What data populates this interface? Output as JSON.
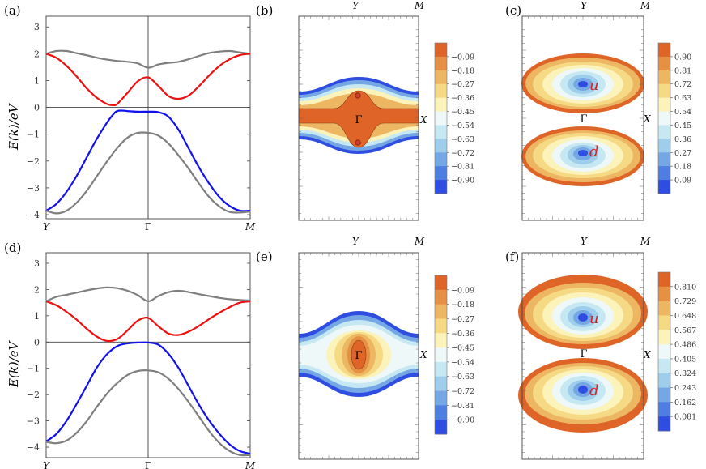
{
  "chart_data": [
    {
      "panel": "(a)",
      "type": "line",
      "ylabel": "E(k)/eV",
      "xticks": [
        "Y",
        "Γ",
        "M"
      ],
      "yticks": [
        -4,
        -3,
        -2,
        -1,
        0,
        1,
        2,
        3
      ],
      "ylim": [
        -4.15,
        3.4
      ],
      "xlim": [
        0,
        1
      ],
      "grid_lines": {
        "x": [
          0.5
        ],
        "y": [
          0
        ]
      },
      "series": [
        {
          "name": "upper-gray",
          "color": "#7f7f7f",
          "x": [
            0,
            0.05,
            0.1,
            0.15,
            0.2,
            0.25,
            0.3,
            0.35,
            0.4,
            0.45,
            0.5,
            0.55,
            0.6,
            0.65,
            0.7,
            0.75,
            0.8,
            0.85,
            0.9,
            0.95,
            1
          ],
          "y": [
            2.0,
            2.1,
            2.1,
            2.02,
            1.94,
            1.85,
            1.78,
            1.73,
            1.7,
            1.64,
            1.48,
            1.6,
            1.66,
            1.7,
            1.8,
            1.92,
            2.03,
            2.08,
            2.1,
            2.05,
            2.0
          ]
        },
        {
          "name": "red",
          "color": "#ee1111",
          "x": [
            0,
            0.05,
            0.1,
            0.15,
            0.2,
            0.25,
            0.3,
            0.33,
            0.35,
            0.4,
            0.45,
            0.5,
            0.55,
            0.6,
            0.65,
            0.7,
            0.75,
            0.8,
            0.85,
            0.9,
            0.95,
            1
          ],
          "y": [
            2.0,
            1.85,
            1.55,
            1.15,
            0.7,
            0.35,
            0.12,
            0.08,
            0.14,
            0.55,
            0.98,
            1.12,
            0.8,
            0.42,
            0.32,
            0.45,
            0.8,
            1.2,
            1.55,
            1.8,
            1.95,
            2.0
          ]
        },
        {
          "name": "blue",
          "color": "#1111ee",
          "x": [
            0,
            0.05,
            0.1,
            0.15,
            0.2,
            0.25,
            0.3,
            0.33,
            0.35,
            0.38,
            0.4,
            0.45,
            0.5,
            0.55,
            0.6,
            0.65,
            0.7,
            0.75,
            0.8,
            0.85,
            0.9,
            0.95,
            1
          ],
          "y": [
            -3.85,
            -3.6,
            -3.15,
            -2.55,
            -1.85,
            -1.15,
            -0.55,
            -0.25,
            -0.13,
            -0.12,
            -0.14,
            -0.16,
            -0.16,
            -0.18,
            -0.35,
            -0.85,
            -1.55,
            -2.25,
            -2.85,
            -3.35,
            -3.68,
            -3.85,
            -3.85
          ]
        },
        {
          "name": "lower-gray",
          "color": "#7f7f7f",
          "x": [
            0,
            0.05,
            0.1,
            0.15,
            0.2,
            0.25,
            0.3,
            0.35,
            0.4,
            0.45,
            0.5,
            0.55,
            0.6,
            0.65,
            0.7,
            0.75,
            0.8,
            0.85,
            0.9,
            0.95,
            1
          ],
          "y": [
            -3.85,
            -3.95,
            -3.85,
            -3.55,
            -3.1,
            -2.55,
            -2.0,
            -1.5,
            -1.12,
            -0.95,
            -0.95,
            -1.05,
            -1.35,
            -1.8,
            -2.3,
            -2.85,
            -3.35,
            -3.7,
            -3.9,
            -3.92,
            -3.88
          ]
        }
      ]
    },
    {
      "panel": "(b)",
      "type": "heatmap",
      "top_labels": [
        "Y",
        "M"
      ],
      "right_label": "X",
      "center_label": "Γ",
      "colorbar": {
        "ticks": [
          "-0.09",
          "-0.18",
          "-0.27",
          "-0.36",
          "-0.45",
          "-0.54",
          "-0.63",
          "-0.72",
          "-0.81",
          "-0.90"
        ],
        "colors": [
          "#de6428",
          "#e59042",
          "#edb662",
          "#f6d985",
          "#fbf3b9",
          "#eef8f8",
          "#c6e8f3",
          "#9fcdec",
          "#76a7e5",
          "#4e7ee1",
          "#2f4de0"
        ]
      }
    },
    {
      "panel": "(c)",
      "type": "heatmap",
      "top_labels": [
        "Y",
        "M"
      ],
      "right_label": "X",
      "center_label": "Γ",
      "valley_labels": [
        "u",
        "d"
      ],
      "colorbar": {
        "ticks": [
          "0.90",
          "0.81",
          "0.72",
          "0.63",
          "0.54",
          "0.45",
          "0.36",
          "0.27",
          "0.18",
          "0.09"
        ],
        "colors": [
          "#de6428",
          "#e59042",
          "#edb662",
          "#f6d985",
          "#fbf3b9",
          "#eef8f8",
          "#c6e8f3",
          "#9fcdec",
          "#76a7e5",
          "#4e7ee1",
          "#2f4de0"
        ]
      }
    },
    {
      "panel": "(d)",
      "type": "line",
      "ylabel": "E(k)/eV",
      "xticks": [
        "Y",
        "Γ",
        "M"
      ],
      "yticks": [
        -4,
        -3,
        -2,
        -1,
        0,
        1,
        2,
        3
      ],
      "ylim": [
        -4.4,
        3.4
      ],
      "xlim": [
        0,
        1
      ],
      "grid_lines": {
        "x": [
          0.5
        ],
        "y": [
          0
        ]
      },
      "series": [
        {
          "name": "upper-gray",
          "color": "#7f7f7f",
          "x": [
            0,
            0.05,
            0.1,
            0.15,
            0.2,
            0.25,
            0.3,
            0.35,
            0.4,
            0.45,
            0.5,
            0.55,
            0.6,
            0.65,
            0.7,
            0.75,
            0.8,
            0.85,
            0.9,
            0.95,
            1
          ],
          "y": [
            1.55,
            1.72,
            1.8,
            1.88,
            1.97,
            2.04,
            2.08,
            2.05,
            1.95,
            1.78,
            1.55,
            1.75,
            1.9,
            1.95,
            1.9,
            1.82,
            1.75,
            1.68,
            1.63,
            1.6,
            1.58
          ]
        },
        {
          "name": "red",
          "color": "#ee1111",
          "x": [
            0,
            0.05,
            0.1,
            0.15,
            0.2,
            0.25,
            0.3,
            0.35,
            0.4,
            0.45,
            0.5,
            0.55,
            0.6,
            0.65,
            0.7,
            0.75,
            0.8,
            0.85,
            0.9,
            0.95,
            1
          ],
          "y": [
            1.55,
            1.4,
            1.15,
            0.85,
            0.5,
            0.2,
            0.04,
            0.12,
            0.45,
            0.82,
            0.92,
            0.6,
            0.32,
            0.27,
            0.4,
            0.62,
            0.88,
            1.12,
            1.33,
            1.5,
            1.55
          ]
        },
        {
          "name": "blue",
          "color": "#1111ee",
          "x": [
            0,
            0.05,
            0.1,
            0.15,
            0.2,
            0.25,
            0.3,
            0.35,
            0.4,
            0.45,
            0.5,
            0.55,
            0.6,
            0.65,
            0.7,
            0.75,
            0.8,
            0.85,
            0.9,
            0.95,
            1
          ],
          "y": [
            -3.78,
            -3.5,
            -3.0,
            -2.35,
            -1.65,
            -0.95,
            -0.45,
            -0.15,
            -0.05,
            -0.02,
            -0.02,
            -0.1,
            -0.45,
            -1.0,
            -1.7,
            -2.4,
            -3.0,
            -3.5,
            -3.9,
            -4.15,
            -4.25
          ]
        },
        {
          "name": "lower-gray",
          "color": "#7f7f7f",
          "x": [
            0,
            0.05,
            0.1,
            0.15,
            0.2,
            0.25,
            0.3,
            0.35,
            0.4,
            0.45,
            0.5,
            0.55,
            0.6,
            0.65,
            0.7,
            0.75,
            0.8,
            0.85,
            0.9,
            0.95,
            1
          ],
          "y": [
            -3.8,
            -3.85,
            -3.75,
            -3.45,
            -3.0,
            -2.45,
            -1.95,
            -1.55,
            -1.25,
            -1.1,
            -1.08,
            -1.15,
            -1.4,
            -1.8,
            -2.3,
            -2.85,
            -3.4,
            -3.85,
            -4.15,
            -4.3,
            -4.3
          ]
        }
      ]
    },
    {
      "panel": "(e)",
      "type": "heatmap",
      "top_labels": [
        "Y",
        "M"
      ],
      "right_label": "X",
      "center_label": "Γ",
      "colorbar": {
        "ticks": [
          "-0.09",
          "-0.18",
          "-0.27",
          "-0.36",
          "-0.45",
          "-0.54",
          "-0.63",
          "-0.72",
          "-0.81",
          "-0.90"
        ],
        "colors": [
          "#de6428",
          "#e59042",
          "#edb662",
          "#f6d985",
          "#fbf3b9",
          "#eef8f8",
          "#c6e8f3",
          "#9fcdec",
          "#76a7e5",
          "#4e7ee1",
          "#2f4de0"
        ]
      }
    },
    {
      "panel": "(f)",
      "type": "heatmap",
      "top_labels": [
        "Y",
        "M"
      ],
      "right_label": "X",
      "center_label": "Γ",
      "valley_labels": [
        "u",
        "d"
      ],
      "colorbar": {
        "ticks": [
          "0.810",
          "0.729",
          "0.648",
          "0.567",
          "0.486",
          "0.405",
          "0.324",
          "0.243",
          "0.162",
          "0.081"
        ],
        "colors": [
          "#de6428",
          "#e59042",
          "#edb662",
          "#f6d985",
          "#fbf3b9",
          "#eef8f8",
          "#c6e8f3",
          "#9fcdec",
          "#76a7e5",
          "#4e7ee1",
          "#2f4de0"
        ]
      }
    }
  ]
}
